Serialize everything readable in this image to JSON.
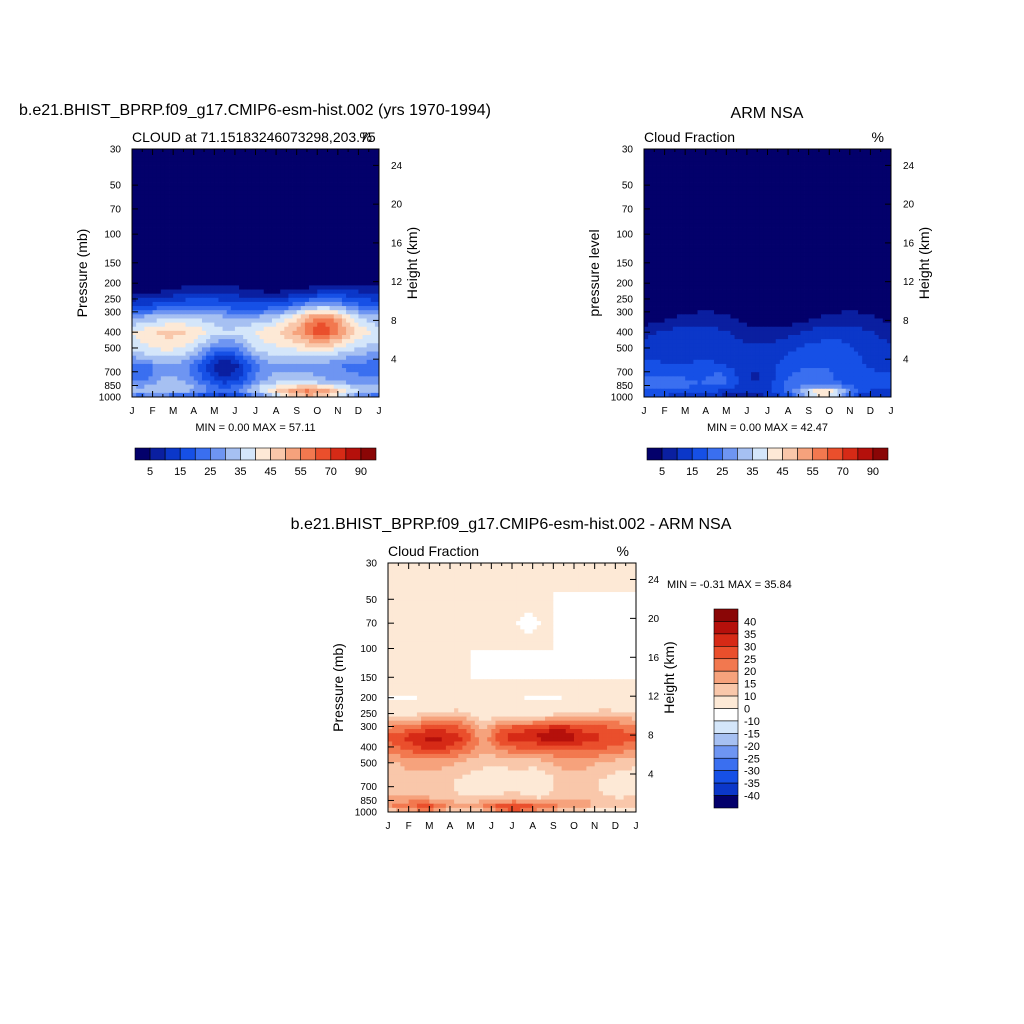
{
  "chart_data": [
    {
      "type": "heatmap",
      "title": "b.e21.BHIST_BPRP.f09_g17.CMIP6-esm-hist.002 (yrs 1970-1994)",
      "left_label": "CLOUD at 71.15183246073298,203.75",
      "right_label": "%",
      "xlabel": "",
      "ylabel": "Pressure (mb)",
      "ylabel_right": "Height (km)",
      "x_ticks": [
        "J",
        "F",
        "M",
        "A",
        "M",
        "J",
        "J",
        "A",
        "S",
        "O",
        "N",
        "D",
        "J"
      ],
      "y_ticks": [
        30,
        50,
        70,
        100,
        150,
        200,
        250,
        300,
        400,
        500,
        700,
        850,
        1000
      ],
      "y_log": true,
      "y_range": [
        30,
        1000
      ],
      "height_ticks": [
        24,
        20,
        16,
        12,
        8,
        4
      ],
      "stats": "MIN =   0.00 MAX =  57.11",
      "colorbar_labels": [
        "5",
        "15",
        "25",
        "35",
        "45",
        "55",
        "70",
        "90"
      ],
      "colorbar_colors": [
        "#03006b",
        "#0a1fa0",
        "#0b37c9",
        "#1650e6",
        "#3a6ff0",
        "#6e95f2",
        "#a6c0f2",
        "#d4e6fa",
        "#fde9d6",
        "#f9c7aa",
        "#f6a27c",
        "#f2784f",
        "#ea4f2c",
        "#d62a16",
        "#b5100b",
        "#8a0606"
      ],
      "profile": {
        "p": [
          30,
          150,
          190,
          220,
          250,
          280,
          320,
          400,
          500,
          650,
          800,
          900,
          1000
        ],
        "v": [
          0,
          0,
          0,
          5,
          12,
          18,
          30,
          40,
          35,
          25,
          30,
          35,
          20
        ]
      },
      "blobs": [
        {
          "m": 9.3,
          "p": 360,
          "a": 16,
          "sm": 0.9,
          "sl": 0.2
        },
        {
          "m": 8.5,
          "p": 330,
          "a": 8,
          "sm": 1.5,
          "sl": 0.25
        },
        {
          "m": 4.6,
          "p": 650,
          "a": -18,
          "sm": 0.9,
          "sl": 0.3
        },
        {
          "m": 1.6,
          "p": 440,
          "a": 4,
          "sm": 1.2,
          "sl": 0.25
        },
        {
          "m": 8.8,
          "p": 960,
          "a": 25,
          "sm": 1.4,
          "sl": 0.08
        },
        {
          "m": 6.0,
          "p": 520,
          "a": 6,
          "sm": 1.0,
          "sl": 0.25
        },
        {
          "m": 0.4,
          "p": 750,
          "a": -10,
          "sm": 0.6,
          "sl": 0.15
        }
      ]
    },
    {
      "type": "heatmap",
      "title": "ARM NSA",
      "left_label": "Cloud Fraction",
      "right_label": "%",
      "xlabel": "",
      "ylabel": "pressure level",
      "ylabel_right": "Height (km)",
      "x_ticks": [
        "J",
        "F",
        "M",
        "A",
        "M",
        "J",
        "J",
        "A",
        "S",
        "O",
        "N",
        "D",
        "J"
      ],
      "y_ticks": [
        30,
        50,
        70,
        100,
        150,
        200,
        250,
        300,
        400,
        500,
        700,
        850,
        1000
      ],
      "y_log": true,
      "y_range": [
        30,
        1000
      ],
      "height_ticks": [
        24,
        20,
        16,
        12,
        8,
        4
      ],
      "stats": "MIN =   0.00 MAX =  42.47",
      "colorbar_labels": [
        "5",
        "15",
        "25",
        "35",
        "45",
        "55",
        "70",
        "90"
      ],
      "colorbar_colors": [
        "#03006b",
        "#0a1fa0",
        "#0b37c9",
        "#1650e6",
        "#3a6ff0",
        "#6e95f2",
        "#a6c0f2",
        "#d4e6fa",
        "#fde9d6",
        "#f9c7aa",
        "#f6a27c",
        "#f2784f",
        "#ea4f2c",
        "#d62a16",
        "#b5100b",
        "#8a0606"
      ],
      "profile": {
        "p": [
          30,
          250,
          300,
          350,
          400,
          500,
          600,
          700,
          850,
          950,
          1000
        ],
        "v": [
          0,
          0,
          2,
          6,
          10,
          14,
          16,
          18,
          20,
          15,
          10
        ]
      },
      "blobs": [
        {
          "m": 8.8,
          "p": 950,
          "a": 30,
          "sm": 0.9,
          "sl": 0.06
        },
        {
          "m": 5.5,
          "p": 800,
          "a": -8,
          "sm": 0.8,
          "sl": 0.15
        },
        {
          "m": 1.5,
          "p": 580,
          "a": -5,
          "sm": 1.0,
          "sl": 0.15
        },
        {
          "m": 3.8,
          "p": 780,
          "a": 6,
          "sm": 0.6,
          "sl": 0.1
        }
      ]
    },
    {
      "type": "heatmap",
      "title": "b.e21.BHIST_BPRP.f09_g17.CMIP6-esm-hist.002 - ARM NSA",
      "left_label": "Cloud Fraction",
      "right_label": "%",
      "xlabel": "",
      "ylabel": "Pressure (mb)",
      "ylabel_right": "Height (km)",
      "x_ticks": [
        "J",
        "F",
        "M",
        "A",
        "M",
        "J",
        "J",
        "A",
        "S",
        "O",
        "N",
        "D",
        "J"
      ],
      "y_ticks": [
        30,
        50,
        70,
        100,
        150,
        200,
        250,
        300,
        400,
        500,
        700,
        850,
        1000
      ],
      "y_log": true,
      "y_range": [
        30,
        1000
      ],
      "height_ticks": [
        24,
        20,
        16,
        12,
        8,
        4
      ],
      "stats": "MIN =  -0.31 MAX =  35.84",
      "colorbar_labels": [
        "40",
        "35",
        "30",
        "25",
        "20",
        "15",
        "10",
        "0",
        "-10",
        "-15",
        "-20",
        "-25",
        "-30",
        "-35",
        "-40"
      ],
      "colorbar_colors": [
        "#8a0606",
        "#b5100b",
        "#d62a16",
        "#ea4f2c",
        "#f2784f",
        "#f6a27c",
        "#f9c7aa",
        "#fde9d6",
        "#ffffff",
        "#d4e6fa",
        "#a6c0f2",
        "#6e95f2",
        "#3a6ff0",
        "#1650e6",
        "#0b37c9",
        "#03006b"
      ],
      "profile": {
        "p": [
          30,
          200,
          230,
          260,
          300,
          350,
          400,
          500,
          650,
          800,
          900,
          1000
        ],
        "v": [
          1,
          2,
          5,
          12,
          22,
          28,
          24,
          14,
          10,
          12,
          18,
          8
        ]
      },
      "blobs": [
        {
          "m": 2.0,
          "p": 370,
          "a": 6,
          "sm": 0.9,
          "sl": 0.15
        },
        {
          "m": 6.2,
          "p": 340,
          "a": 8,
          "sm": 0.8,
          "sl": 0.15
        },
        {
          "m": 8.1,
          "p": 330,
          "a": 12,
          "sm": 0.8,
          "sl": 0.12
        },
        {
          "m": 4.6,
          "p": 320,
          "a": -10,
          "sm": 0.5,
          "sl": 0.2
        },
        {
          "m": 7.3,
          "p": 700,
          "a": -8,
          "sm": 0.6,
          "sl": 0.2
        },
        {
          "m": 6.0,
          "p": 950,
          "a": 15,
          "sm": 1.2,
          "sl": 0.06
        },
        {
          "m": 2.0,
          "p": 950,
          "a": 10,
          "sm": 0.8,
          "sl": 0.06
        }
      ],
      "negative_regions": [
        {
          "m0": 4.0,
          "m1": 12.0,
          "p0": 100,
          "p1": 150,
          "v": -3
        },
        {
          "m0": 8.0,
          "m1": 12.0,
          "p0": 45,
          "p1": 100,
          "v": -3
        },
        {
          "diamond": true,
          "m": 6.8,
          "p": 70,
          "dm": 0.6,
          "dl": 0.17,
          "v": -3
        }
      ]
    }
  ]
}
